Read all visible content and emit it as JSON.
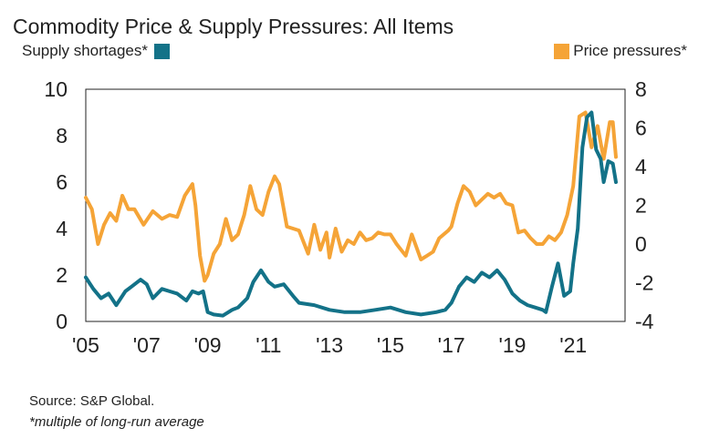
{
  "chart_data": {
    "type": "line",
    "title": "Commodity Price & Supply Pressures: All Items",
    "x_ticks": [
      "'05",
      "'07",
      "'09",
      "'11",
      "'13",
      "'15",
      "'17",
      "'19",
      "'21"
    ],
    "x_tick_values": [
      2005,
      2007,
      2009,
      2011,
      2013,
      2015,
      2017,
      2019,
      2021
    ],
    "xlim": [
      2005,
      2022.7
    ],
    "left_axis": {
      "ticks": [
        "10",
        "8",
        "6",
        "4",
        "2",
        "0"
      ],
      "tick_values": [
        10,
        8,
        6,
        4,
        2,
        0
      ],
      "ylim": [
        0,
        10
      ]
    },
    "right_axis": {
      "ticks": [
        "8",
        "6",
        "4",
        "2",
        "0",
        "-2",
        "-4"
      ],
      "tick_values": [
        8,
        6,
        4,
        2,
        0,
        -2,
        -4
      ],
      "ylim": [
        -4,
        8
      ]
    },
    "series": [
      {
        "name": "Supply shortages*",
        "axis": "left",
        "color": "#137288",
        "x": [
          2005.0,
          2005.25,
          2005.5,
          2005.75,
          2006.0,
          2006.3,
          2006.5,
          2006.8,
          2007.0,
          2007.2,
          2007.5,
          2007.75,
          2008.0,
          2008.3,
          2008.5,
          2008.7,
          2008.85,
          2009.0,
          2009.2,
          2009.5,
          2009.8,
          2010.0,
          2010.3,
          2010.5,
          2010.75,
          2011.0,
          2011.2,
          2011.5,
          2011.8,
          2012.0,
          2012.5,
          2013.0,
          2013.5,
          2014.0,
          2014.5,
          2015.0,
          2015.5,
          2016.0,
          2016.5,
          2016.8,
          2017.0,
          2017.25,
          2017.5,
          2017.75,
          2018.0,
          2018.25,
          2018.5,
          2018.75,
          2019.0,
          2019.25,
          2019.5,
          2019.75,
          2020.0,
          2020.1,
          2020.3,
          2020.5,
          2020.7,
          2020.9,
          2021.0,
          2021.15,
          2021.3,
          2021.45,
          2021.6,
          2021.75,
          2021.9,
          2022.0,
          2022.15,
          2022.3,
          2022.4
        ],
        "values": [
          1.9,
          1.4,
          1.0,
          1.2,
          0.7,
          1.3,
          1.5,
          1.8,
          1.6,
          1.0,
          1.4,
          1.3,
          1.2,
          0.9,
          1.3,
          1.2,
          1.3,
          0.4,
          0.3,
          0.25,
          0.5,
          0.6,
          1.0,
          1.7,
          2.2,
          1.7,
          1.5,
          1.6,
          1.1,
          0.8,
          0.7,
          0.5,
          0.4,
          0.4,
          0.5,
          0.6,
          0.4,
          0.3,
          0.4,
          0.5,
          0.8,
          1.5,
          1.9,
          1.7,
          2.1,
          1.9,
          2.2,
          1.8,
          1.2,
          0.9,
          0.7,
          0.6,
          0.5,
          0.4,
          1.5,
          2.5,
          1.1,
          1.3,
          2.5,
          4.0,
          7.5,
          8.8,
          9.0,
          7.4,
          7.0,
          6.0,
          6.9,
          6.8,
          6.0
        ]
      },
      {
        "name": "Price pressures*",
        "axis": "right",
        "color": "#F5A437",
        "x": [
          2005.0,
          2005.2,
          2005.4,
          2005.6,
          2005.8,
          2006.0,
          2006.2,
          2006.4,
          2006.6,
          2006.9,
          2007.2,
          2007.5,
          2007.75,
          2008.0,
          2008.25,
          2008.5,
          2008.6,
          2008.75,
          2008.9,
          2009.0,
          2009.2,
          2009.4,
          2009.6,
          2009.8,
          2010.0,
          2010.2,
          2010.4,
          2010.6,
          2010.8,
          2011.0,
          2011.2,
          2011.35,
          2011.6,
          2011.8,
          2012.0,
          2012.3,
          2012.5,
          2012.7,
          2012.9,
          2013.0,
          2013.2,
          2013.4,
          2013.6,
          2013.8,
          2014.0,
          2014.2,
          2014.4,
          2014.6,
          2014.8,
          2015.0,
          2015.2,
          2015.5,
          2015.7,
          2016.0,
          2016.2,
          2016.4,
          2016.6,
          2016.9,
          2017.0,
          2017.2,
          2017.4,
          2017.6,
          2017.8,
          2018.0,
          2018.2,
          2018.4,
          2018.6,
          2018.8,
          2019.0,
          2019.2,
          2019.4,
          2019.6,
          2019.8,
          2020.0,
          2020.2,
          2020.4,
          2020.6,
          2020.8,
          2021.0,
          2021.2,
          2021.4,
          2021.6,
          2021.8,
          2022.0,
          2022.2,
          2022.3,
          2022.4
        ],
        "values": [
          2.4,
          1.8,
          0.0,
          1.0,
          1.6,
          1.2,
          2.5,
          1.8,
          1.8,
          1.0,
          1.7,
          1.3,
          1.5,
          1.4,
          2.5,
          3.1,
          2.0,
          -0.6,
          -1.9,
          -1.6,
          -0.5,
          0.0,
          1.3,
          0.2,
          0.5,
          1.5,
          3.0,
          1.8,
          1.5,
          2.7,
          3.5,
          3.1,
          0.9,
          0.8,
          0.7,
          -0.5,
          1.0,
          -0.3,
          0.6,
          -0.7,
          0.8,
          -0.4,
          0.2,
          0.0,
          0.6,
          0.2,
          0.3,
          0.6,
          0.5,
          0.5,
          0.0,
          -0.6,
          0.5,
          -0.8,
          -0.6,
          -0.4,
          0.3,
          0.7,
          0.9,
          2.1,
          3.0,
          2.7,
          2.0,
          2.3,
          2.6,
          2.4,
          2.6,
          2.1,
          2.0,
          0.6,
          0.7,
          0.3,
          0.0,
          0.0,
          0.4,
          0.2,
          0.6,
          1.5,
          3.0,
          6.6,
          6.8,
          5.0,
          6.1,
          4.4,
          6.3,
          6.3,
          4.5
        ]
      }
    ],
    "source": "Source: S&P Global.",
    "footnote": "*multiple of long-run average"
  }
}
